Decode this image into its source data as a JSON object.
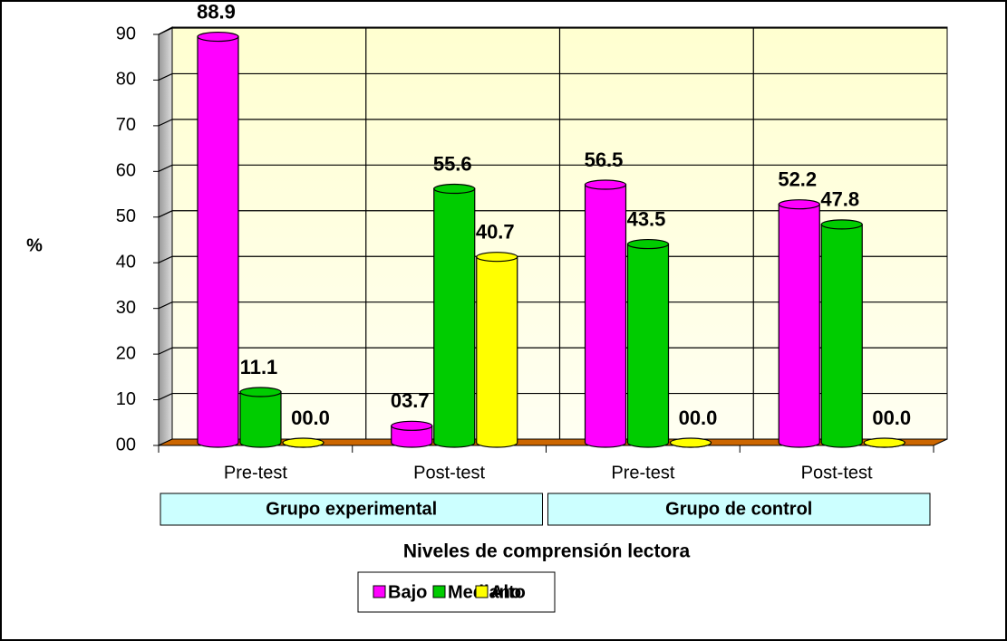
{
  "chart_data": {
    "type": "bar",
    "categories": [
      "Pre-test",
      "Post-test",
      "Pre-test",
      "Post-test"
    ],
    "groups": [
      "Grupo experimental",
      "Grupo de control"
    ],
    "series": [
      {
        "name": "Bajo",
        "color": "#ff00ff",
        "values": [
          88.9,
          3.7,
          56.5,
          52.2
        ],
        "value_labels": [
          "88.9",
          "03.7",
          "56.5",
          "52.2"
        ]
      },
      {
        "name": "Mediano",
        "color": "#00cc00",
        "values": [
          11.1,
          55.6,
          43.5,
          47.8
        ],
        "value_labels": [
          "11.1",
          "55.6",
          "43.5",
          "47.8"
        ]
      },
      {
        "name": "Alto",
        "color": "#ffff00",
        "values": [
          0,
          40.7,
          0,
          0
        ],
        "value_labels": [
          "00.0",
          "40.7",
          "00.0",
          "00.0"
        ]
      }
    ],
    "ylabel": "%",
    "xlabel": "Niveles de comprensión lectora",
    "ylim": [
      0,
      90
    ],
    "yticks": [
      {
        "value": 0,
        "label": "00"
      },
      10,
      20,
      30,
      40,
      50,
      60,
      70,
      80,
      90
    ],
    "grid": true
  }
}
